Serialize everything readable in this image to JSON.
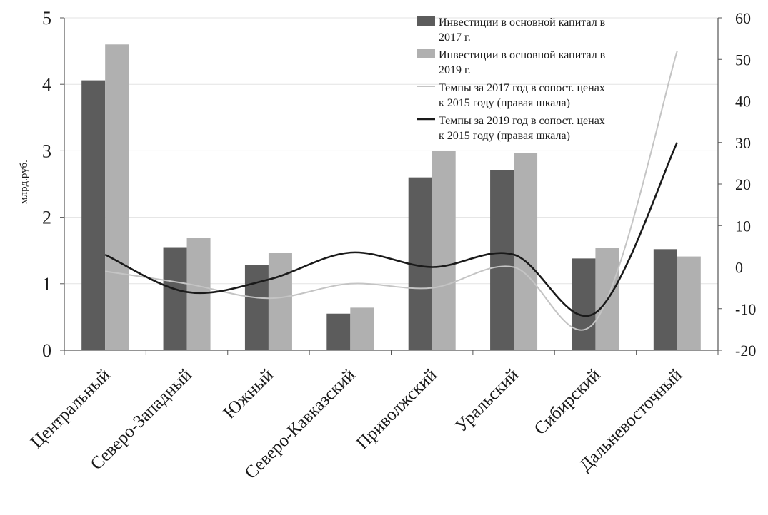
{
  "chart_data": {
    "type": "bar",
    "categories": [
      "Центральный",
      "Северо-Западный",
      "Южный",
      "Северо-Кавказский",
      "Приволжский",
      "Уральский",
      "Сибирский",
      "Дальневосточный"
    ],
    "series": [
      {
        "name": "Инвестиции в основной капитал в 2017 г.",
        "kind": "bar",
        "axis": "left",
        "color": "#5c5c5c",
        "values": [
          4.06,
          1.55,
          1.28,
          0.55,
          2.6,
          2.71,
          1.38,
          1.52
        ]
      },
      {
        "name": "Инвестиции в основной капитал в 2019 г.",
        "kind": "bar",
        "axis": "left",
        "color": "#b0b0b0",
        "values": [
          4.6,
          1.69,
          1.47,
          0.64,
          3.0,
          2.97,
          1.54,
          1.41
        ]
      },
      {
        "name": "Темпы за 2017 год в сопост. ценах к 2015 году (правая шкала)",
        "kind": "line",
        "axis": "right",
        "color": "#c4c4c4",
        "values": [
          -1,
          -4,
          -7.5,
          -4,
          -5,
          0,
          -13,
          52
        ]
      },
      {
        "name": "Темпы за 2019 год в сопост. ценах к 2015 году (правая шкала)",
        "kind": "line",
        "axis": "right",
        "color": "#1a1a1a",
        "values": [
          3,
          -6,
          -3,
          3.5,
          0,
          3,
          -11,
          30
        ]
      }
    ],
    "ylabel": "млрд.руб.",
    "ylim": [
      0,
      5
    ],
    "yticks": [
      "0",
      "1",
      "2",
      "3",
      "4",
      "5"
    ],
    "y2lim": [
      -20,
      60
    ],
    "y2ticks": [
      "-20",
      "-10",
      "0",
      "10",
      "20",
      "30",
      "40",
      "50",
      "60"
    ],
    "grid": true,
    "legend": {
      "position": "top-right",
      "lines": [
        [
          "Инвестиции в основной капитал в",
          "2017 г."
        ],
        [
          "Инвестиции в основной капитал в",
          "2019 г."
        ],
        [
          "Темпы за 2017 год в сопост. ценах",
          "к 2015 году (правая шкала)"
        ],
        [
          "Темпы за 2019 год в сопост. ценах",
          "к 2015 году (правая шкала)"
        ]
      ]
    }
  }
}
